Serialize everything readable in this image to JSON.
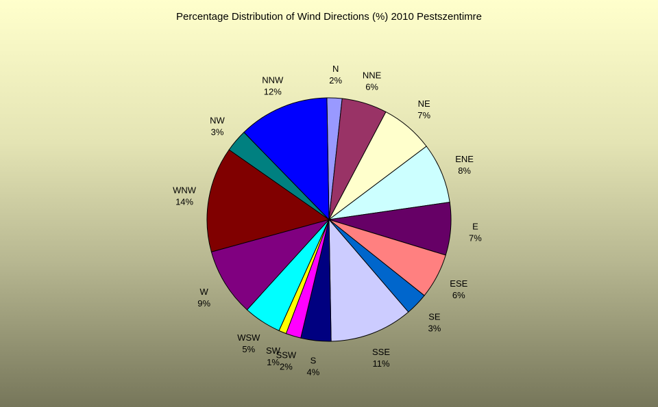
{
  "chart_data": {
    "type": "pie",
    "title": "Percentage Distribution of Wind Directions (%) 2010 Pestszentimre",
    "categories": [
      "N",
      "NNE",
      "NE",
      "ENE",
      "E",
      "ESE",
      "SE",
      "SSE",
      "S",
      "SSW",
      "SW",
      "WSW",
      "W",
      "WNW",
      "NW",
      "NNW"
    ],
    "values": [
      2,
      6,
      7,
      8,
      7,
      6,
      3,
      11,
      4,
      2,
      1,
      5,
      9,
      14,
      3,
      12
    ],
    "value_labels": [
      "2%",
      "6%",
      "7%",
      "8%",
      "7%",
      "6%",
      "3%",
      "11%",
      "4%",
      "2%",
      "1%",
      "5%",
      "9%",
      "14%",
      "3%",
      "12%"
    ],
    "colors": [
      "#9999ff",
      "#993366",
      "#ffffcc",
      "#ccffff",
      "#660066",
      "#ff8080",
      "#0066cc",
      "#ccccff",
      "#000080",
      "#ff00ff",
      "#ffff00",
      "#00ffff",
      "#800080",
      "#800000",
      "#008080",
      "#0000ff"
    ],
    "legend": "none"
  }
}
